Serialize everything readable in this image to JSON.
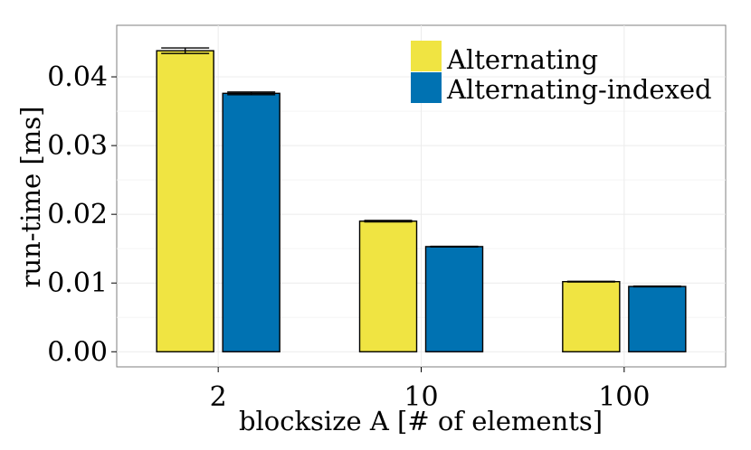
{
  "chart_data": {
    "type": "bar",
    "title": "",
    "xlabel": "blocksize A [# of elements]",
    "ylabel": "run-time [ms]",
    "categories": [
      "2",
      "10",
      "100"
    ],
    "series": [
      {
        "name": "Alternating",
        "color": "#F0E442",
        "values": [
          0.0438,
          0.019,
          0.0102
        ],
        "error": [
          0.0004,
          0.0001,
          5e-05
        ]
      },
      {
        "name": "Alternating-indexed",
        "color": "#0072B2",
        "values": [
          0.0376,
          0.0153,
          0.0095
        ],
        "error": [
          0.0002,
          5e-05,
          5e-05
        ]
      }
    ],
    "ylim": [
      -0.0022,
      0.0475
    ],
    "yticks": [
      0.0,
      0.01,
      0.02,
      0.03,
      0.04
    ],
    "ytick_labels": [
      "0.00",
      "0.01",
      "0.02",
      "0.03",
      "0.04"
    ],
    "grid": true,
    "legend_position": "top-right"
  }
}
